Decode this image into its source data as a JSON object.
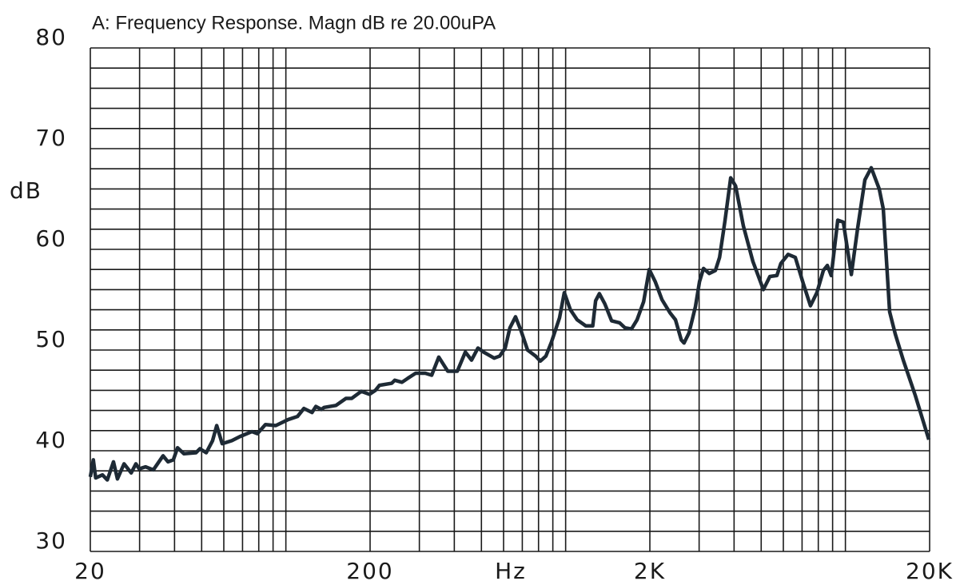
{
  "chart_data": {
    "type": "line",
    "title": "A: Frequency Response. Magn dB re 20.00uPA",
    "xlabel": "Hz",
    "ylabel": "dB",
    "xscale": "log",
    "xlim": [
      20,
      20000
    ],
    "ylim": [
      30,
      80
    ],
    "xticks": [
      20,
      200,
      {
        "value": 2000,
        "label": "2K"
      },
      {
        "value": 20000,
        "label": "20K"
      }
    ],
    "yticks": [
      30,
      40,
      50,
      60,
      70,
      80
    ],
    "minor_xticks": [
      30,
      40,
      50,
      60,
      70,
      80,
      90,
      100,
      300,
      400,
      500,
      600,
      700,
      800,
      900,
      1000,
      3000,
      4000,
      5000,
      6000,
      7000,
      8000,
      9000,
      10000
    ],
    "minor_yticks": [
      32,
      34,
      36,
      38,
      42,
      44,
      46,
      48,
      52,
      54,
      56,
      58,
      62,
      64,
      66,
      68,
      72,
      74,
      76,
      78
    ],
    "grid": true,
    "grid_color": "#1a1a1a",
    "x": [
      20,
      20.5,
      20.9,
      22.1,
      23.0,
      24.2,
      25.0,
      26.4,
      28.0,
      29.1,
      29.9,
      31.5,
      33.6,
      36.4,
      37.9,
      39.6,
      41.0,
      43.2,
      47.7,
      49.3,
      51.9,
      54.7,
      56.6,
      59.2,
      64.1,
      68.4,
      75.6,
      79.1,
      84.5,
      92.0,
      102,
      110,
      116,
      124,
      128,
      134,
      137,
      151,
      164,
      172,
      186,
      199,
      209,
      216,
      239,
      245,
      260,
      273,
      291,
      315,
      332,
      352,
      379,
      410,
      438,
      461,
      486,
      509,
      555,
      581,
      608,
      632,
      662,
      693,
      731,
      781,
      812,
      850,
      890,
      951,
      989,
      1040,
      1100,
      1180,
      1250,
      1280,
      1320,
      1380,
      1460,
      1560,
      1630,
      1720,
      1800,
      1900,
      1990,
      2090,
      2210,
      2360,
      2470,
      2590,
      2650,
      2760,
      2910,
      3010,
      3110,
      3260,
      3430,
      3550,
      3710,
      3890,
      4050,
      4320,
      4670,
      5090,
      5370,
      5690,
      5880,
      6240,
      6620,
      7070,
      7500,
      7910,
      8340,
      8620,
      8900,
      9390,
      9830,
      10500,
      11060,
      11740,
      12370,
      13210,
      13660,
      14390,
      15070,
      16100,
      17770,
      19870
    ],
    "series": [
      {
        "color": "#1e2a35",
        "values": [
          37.4,
          39.1,
          37.3,
          37.6,
          37.1,
          38.9,
          37.2,
          38.7,
          37.8,
          38.7,
          38.2,
          38.4,
          38.1,
          39.5,
          38.9,
          39.1,
          40.3,
          39.7,
          39.8,
          40.2,
          39.8,
          41.0,
          42.5,
          40.7,
          41.0,
          41.4,
          41.9,
          41.7,
          42.6,
          42.5,
          43.1,
          43.4,
          44.2,
          43.8,
          44.4,
          44.1,
          44.3,
          44.5,
          45.2,
          45.2,
          45.9,
          45.6,
          46.0,
          46.5,
          46.7,
          47.0,
          46.8,
          47.2,
          47.7,
          47.7,
          47.5,
          49.3,
          47.9,
          47.9,
          49.8,
          49.0,
          50.2,
          49.8,
          49.2,
          49.4,
          50.2,
          52.2,
          53.3,
          51.9,
          50.0,
          49.4,
          48.9,
          49.4,
          50.8,
          53.2,
          55.7,
          54.0,
          53.0,
          52.4,
          52.4,
          54.9,
          55.6,
          54.6,
          52.9,
          52.7,
          52.2,
          52.1,
          53.0,
          54.8,
          58.0,
          56.8,
          55.0,
          53.7,
          53.0,
          51.0,
          50.7,
          51.7,
          54.3,
          56.8,
          58.1,
          57.6,
          57.9,
          59.2,
          62.8,
          67.1,
          66.3,
          62.3,
          58.8,
          56.0,
          57.3,
          57.4,
          58.6,
          59.5,
          59.2,
          56.6,
          54.4,
          55.7,
          57.9,
          58.4,
          57.4,
          62.9,
          62.7,
          57.5,
          62.1,
          66.9,
          68.1,
          66.0,
          64.0,
          53.8,
          51.6,
          49.0,
          45.5,
          41.1
        ]
      }
    ]
  }
}
